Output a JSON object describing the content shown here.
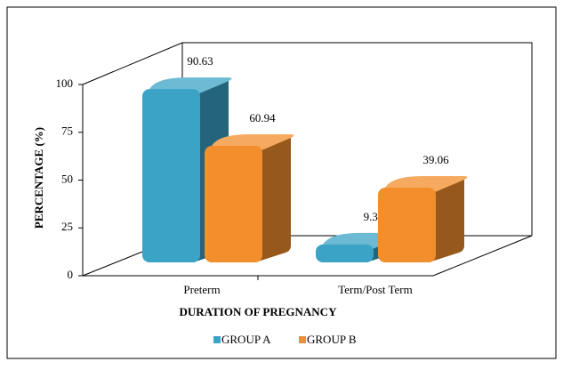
{
  "chart_data": {
    "type": "bar3d",
    "categories": [
      "Preterm",
      "Term/Post Term"
    ],
    "series": [
      {
        "name": "GROUP A",
        "color": "#3ba3c6",
        "values": [
          90.63,
          9.38
        ]
      },
      {
        "name": "GROUP B",
        "color": "#f28e2b",
        "values": [
          60.94,
          39.06
        ]
      }
    ],
    "xlabel": "DURATION OF PREGNANCY",
    "ylabel": "PERCENTAGE (%)",
    "ylim": [
      0,
      100
    ],
    "yticks": [
      0,
      25,
      50,
      75,
      100
    ],
    "legend": "bottom"
  }
}
